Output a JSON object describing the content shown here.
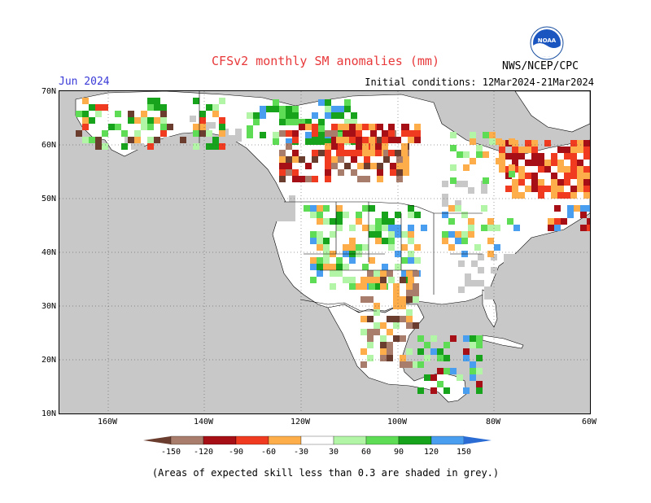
{
  "header": {
    "title": "CFSv2 monthly SM anomalies (mm)",
    "month": "Jun 2024",
    "initial_conditions": "Initial conditions: 12Mar2024-21Mar2024",
    "agency": "NWS/NCEP/CPC",
    "logo_text": "NOAA"
  },
  "map": {
    "lat_labels": [
      "70N",
      "60N",
      "50N",
      "40N",
      "30N",
      "20N",
      "10N"
    ],
    "lon_labels": [
      "160W",
      "140W",
      "120W",
      "100W",
      "80W",
      "60W"
    ],
    "mask_color": "#c8c8c8",
    "ocean_color": "#c8c8c8",
    "land_color": "#ffffff"
  },
  "colorbar": {
    "levels": [
      "-150",
      "-120",
      "-90",
      "-60",
      "-30",
      "30",
      "60",
      "90",
      "120",
      "150"
    ],
    "colors": [
      "#6b3d2e",
      "#a87d6b",
      "#a50f15",
      "#f03b20",
      "#fdae4b",
      "#ffffff",
      "#b3f5a6",
      "#5fdc55",
      "#17a31c",
      "#4a9ef0",
      "#2b6cd4"
    ]
  },
  "footnote": "(Areas of expected skill less than 0.3 are shaded in grey.)"
}
